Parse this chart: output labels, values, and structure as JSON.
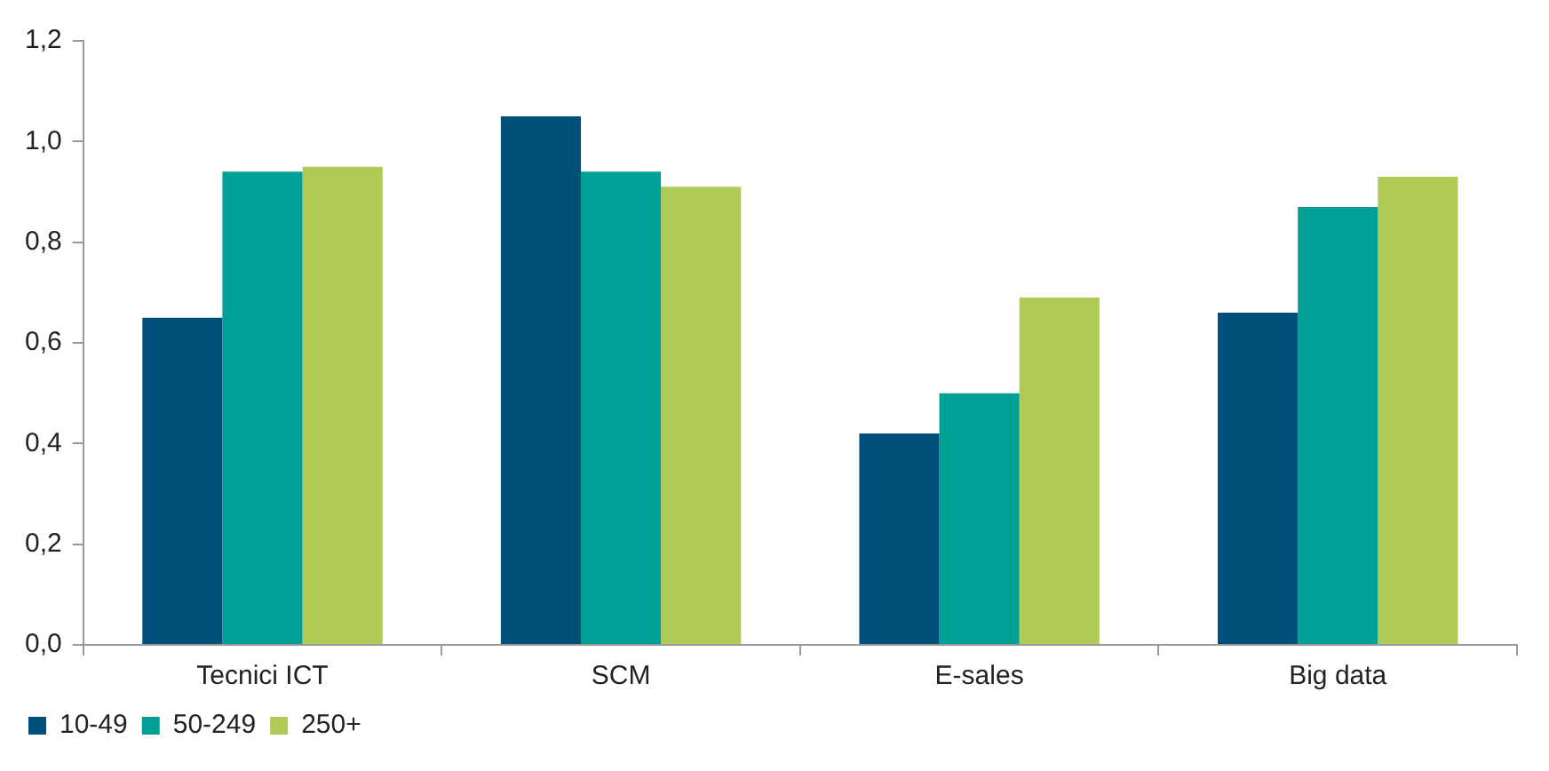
{
  "chart_data": {
    "type": "bar",
    "categories": [
      "Tecnici ICT",
      "SCM",
      "E-sales",
      "Big data"
    ],
    "series": [
      {
        "name": "10-49",
        "color": "#00507a",
        "values": [
          0.65,
          1.05,
          0.42,
          0.66
        ]
      },
      {
        "name": "50-249",
        "color": "#00a096",
        "values": [
          0.94,
          0.94,
          0.5,
          0.87
        ]
      },
      {
        "name": "250+",
        "color": "#b0cb55",
        "values": [
          0.95,
          0.91,
          0.69,
          0.93
        ]
      }
    ],
    "ylim": [
      0,
      1.2
    ],
    "yticks": [
      {
        "value": 0,
        "label": "0,0"
      },
      {
        "value": 0.2,
        "label": "0,2"
      },
      {
        "value": 0.4,
        "label": "0,4"
      },
      {
        "value": 0.6,
        "label": "0,6"
      },
      {
        "value": 0.8,
        "label": "0,8"
      },
      {
        "value": 1,
        "label": "1,0"
      },
      {
        "value": 1.2,
        "label": "1,2"
      }
    ],
    "grid": false,
    "legend": "bottom left"
  }
}
